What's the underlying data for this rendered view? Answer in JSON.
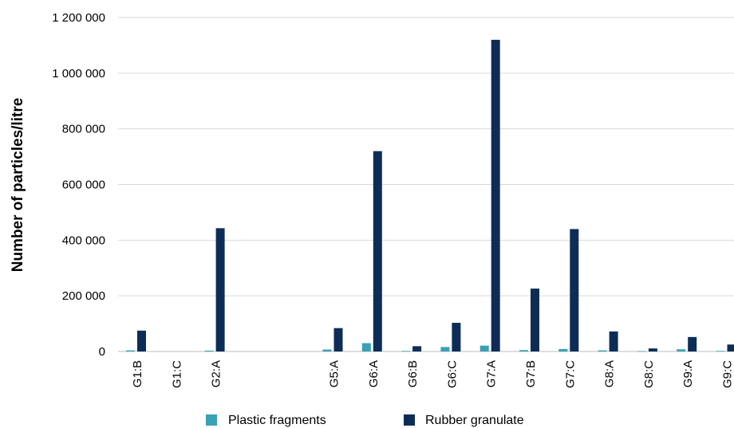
{
  "chart_data": {
    "type": "bar",
    "title": "",
    "xlabel": "",
    "ylabel": "Number of particles/litre",
    "ylim": [
      0,
      1200000
    ],
    "yticks": [
      "0",
      "200 000",
      "400 000",
      "600 000",
      "800 000",
      "1 000 000",
      "1 200 000"
    ],
    "ytick_values": [
      0,
      200000,
      400000,
      600000,
      800000,
      1000000,
      1200000
    ],
    "grid": true,
    "legend_position": "bottom",
    "categories": [
      "G1:B",
      "G1:C",
      "G2:A",
      "",
      "",
      "G5:A",
      "G6:A",
      "G6:B",
      "G6:C",
      "G7:A",
      "G7:B",
      "G7:C",
      "G8:A",
      "G8:C",
      "G9:A",
      "G9:C"
    ],
    "series": [
      {
        "name": "Plastic fragments",
        "color": "#3aa0b6",
        "values": [
          4000,
          0,
          3000,
          0,
          0,
          7000,
          30000,
          2000,
          16000,
          21000,
          5000,
          9000,
          4000,
          1000,
          8000,
          2000
        ]
      },
      {
        "name": "Rubber granulate",
        "color": "#0d2d57",
        "values": [
          75000,
          0,
          443000,
          0,
          0,
          84000,
          720000,
          19000,
          103000,
          1120000,
          226000,
          440000,
          72000,
          11000,
          52000,
          25000
        ]
      }
    ]
  }
}
